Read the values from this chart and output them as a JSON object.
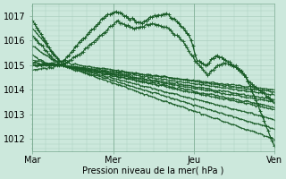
{
  "bg_color": "#cce8dc",
  "grid_color": "#aacfbf",
  "line_color": "#1a5c28",
  "xlabel": "Pression niveau de la mer( hPa )",
  "xtick_labels": [
    "Mar",
    "Mer",
    "Jeu",
    "Ven"
  ],
  "ylim": [
    1011.5,
    1017.5
  ],
  "yticks": [
    1012,
    1013,
    1014,
    1015,
    1016,
    1017
  ],
  "figsize": [
    3.2,
    2.0
  ],
  "dpi": 100
}
